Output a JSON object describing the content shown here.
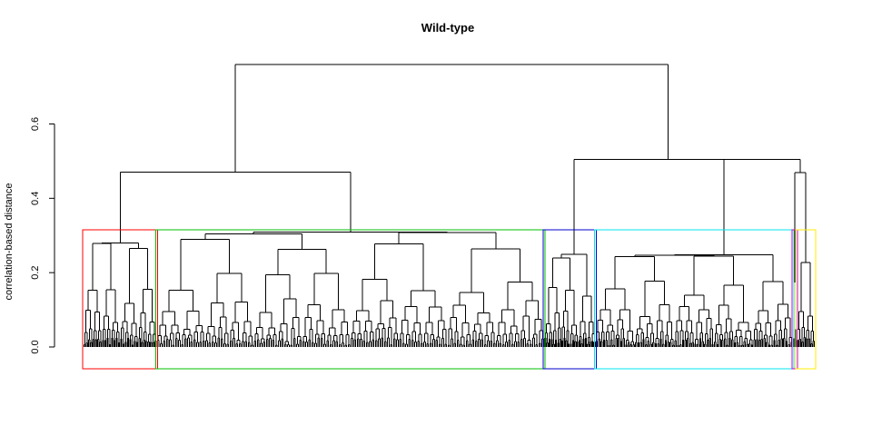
{
  "chart_data": {
    "type": "dendrogram",
    "title": "Wild-type",
    "xlabel": "",
    "ylabel": "correlation-based distance",
    "ylim": [
      0,
      0.76
    ],
    "yticks": [
      {
        "value": 0.0,
        "label": "0.0"
      },
      {
        "value": 0.2,
        "label": "0.2"
      },
      {
        "value": 0.4,
        "label": "0.4"
      },
      {
        "value": 0.6,
        "label": "0.6"
      }
    ],
    "cut_height": 0.315,
    "root_height": 0.76,
    "main_merges": [
      {
        "height": 0.76,
        "joins": [
          "left group",
          "right group"
        ]
      },
      {
        "height": 0.47,
        "joins": [
          "red cluster",
          "green cluster"
        ]
      },
      {
        "height": 0.505,
        "joins": [
          "cyan cluster",
          "purple/yellow clusters"
        ]
      }
    ],
    "clusters": [
      {
        "color": "#ff0000",
        "merge_height": 0.285
      },
      {
        "color": "#00c000",
        "merge_height": 0.315
      },
      {
        "color": "#0000cc",
        "merge_height": 0.26
      },
      {
        "color": "#00e5ee",
        "merge_height": 0.255
      },
      {
        "color": "#cc00cc",
        "merge_height": 0.47
      },
      {
        "color": "#ffee00",
        "merge_height": 0.27
      }
    ],
    "grid": false,
    "legend": "none"
  }
}
